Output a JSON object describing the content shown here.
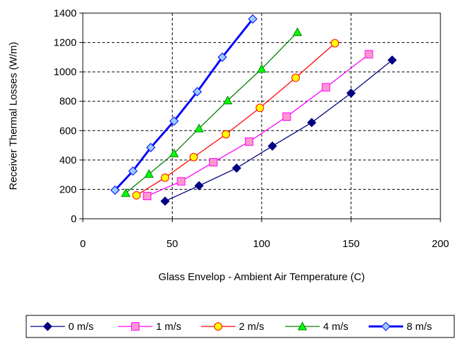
{
  "chart_data": {
    "type": "line",
    "title": "",
    "xlabel": "Glass Envelop - Ambient Air Temperature (C)",
    "ylabel": "Receiver Thermal Losses (W/m)",
    "xlim": [
      0,
      200
    ],
    "ylim": [
      0,
      1400
    ],
    "xticks": [
      0,
      50,
      100,
      150,
      200
    ],
    "yticks": [
      0,
      200,
      400,
      600,
      800,
      1000,
      1200,
      1400
    ],
    "grid": "dashed",
    "legend_position": "bottom",
    "series": [
      {
        "name": "0 m/s",
        "color": "#000080",
        "marker": "diamond",
        "marker_fill": "#000080",
        "x": [
          46,
          65,
          86,
          106,
          128,
          150,
          173
        ],
        "y": [
          120,
          225,
          345,
          495,
          655,
          855,
          1080
        ]
      },
      {
        "name": "1 m/s",
        "color": "#ff00ff",
        "marker": "square",
        "marker_fill": "#ff99cc",
        "x": [
          36,
          55,
          73,
          93,
          114,
          136,
          160
        ],
        "y": [
          155,
          255,
          385,
          525,
          695,
          895,
          1120
        ]
      },
      {
        "name": "2 m/s",
        "color": "#ff0000",
        "marker": "circle",
        "marker_fill": "#ffff00",
        "x": [
          30,
          46,
          62,
          80,
          99,
          119,
          141
        ],
        "y": [
          160,
          280,
          420,
          575,
          755,
          960,
          1195
        ]
      },
      {
        "name": "4 m/s",
        "color": "#008000",
        "marker": "triangle",
        "marker_fill": "#00ff00",
        "x": [
          24,
          37,
          51,
          65,
          81,
          100,
          120
        ],
        "y": [
          175,
          305,
          445,
          615,
          805,
          1020,
          1270
        ]
      },
      {
        "name": "8 m/s",
        "color": "#0000ff",
        "marker": "diamond",
        "marker_fill": "#99ccff",
        "x": [
          18,
          28,
          38,
          51,
          64,
          78,
          95
        ],
        "y": [
          195,
          325,
          485,
          665,
          865,
          1100,
          1360
        ]
      }
    ]
  }
}
